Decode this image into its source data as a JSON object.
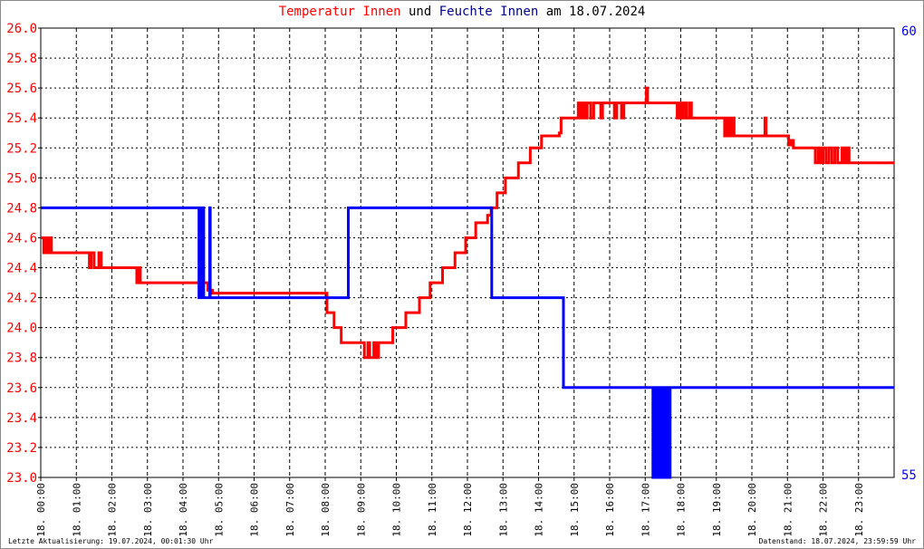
{
  "title": {
    "part1": "Temperatur Innen",
    "part2": "und",
    "part3": "Feuchte Innen",
    "part4": "am 18.07.2024"
  },
  "footer": {
    "left": "Letzte Aktualisierung: 19.07.2024, 00:01:30 Uhr",
    "right": "Datenstand: 18.07.2024, 23:59:59 Uhr"
  },
  "chart_data": {
    "type": "line",
    "title": "Temperatur Innen und Feuchte Innen am 18.07.2024",
    "grid": true,
    "x_range": [
      "00:00",
      "24:00"
    ],
    "x_ticks": [
      "18. 00:00",
      "18. 01:00",
      "18. 02:00",
      "18. 03:00",
      "18. 04:00",
      "18. 05:00",
      "18. 06:00",
      "18. 07:00",
      "18. 08:00",
      "18. 09:00",
      "18. 10:00",
      "18. 11:00",
      "18. 12:00",
      "18. 13:00",
      "18. 14:00",
      "18. 15:00",
      "18. 16:00",
      "18. 17:00",
      "18. 18:00",
      "18. 19:00",
      "18. 20:00",
      "18. 21:00",
      "18. 22:00",
      "18. 23:00"
    ],
    "y_left": {
      "range": [
        23.0,
        26.0
      ],
      "ticks": [
        "23.0",
        "23.2",
        "23.4",
        "23.6",
        "23.8",
        "24.0",
        "24.2",
        "24.4",
        "24.6",
        "24.8",
        "25.0",
        "25.2",
        "25.4",
        "25.6",
        "25.8",
        "26.0"
      ],
      "color": "#ff0000"
    },
    "y_right": {
      "range": [
        55,
        60
      ],
      "ticks": [
        "55",
        "60"
      ],
      "color": "#0000ff"
    },
    "series": [
      {
        "name": "Temperatur Innen",
        "axis": "left",
        "color": "#ff0000",
        "points": [
          [
            "00:00",
            24.6
          ],
          [
            "00:05",
            24.5
          ],
          [
            "00:08",
            24.6
          ],
          [
            "00:12",
            24.5
          ],
          [
            "00:15",
            24.6
          ],
          [
            "00:18",
            24.5
          ],
          [
            "01:20",
            24.5
          ],
          [
            "01:22",
            24.4
          ],
          [
            "01:25",
            24.5
          ],
          [
            "01:30",
            24.4
          ],
          [
            "01:38",
            24.5
          ],
          [
            "01:42",
            24.4
          ],
          [
            "02:40",
            24.4
          ],
          [
            "02:42",
            24.3
          ],
          [
            "02:45",
            24.4
          ],
          [
            "02:48",
            24.3
          ],
          [
            "04:40",
            24.3
          ],
          [
            "04:42",
            24.25
          ],
          [
            "04:50",
            24.23
          ],
          [
            "08:00",
            24.23
          ],
          [
            "08:03",
            24.1
          ],
          [
            "08:15",
            24.0
          ],
          [
            "08:27",
            23.9
          ],
          [
            "09:05",
            23.9
          ],
          [
            "09:06",
            23.8
          ],
          [
            "09:12",
            23.9
          ],
          [
            "09:15",
            23.8
          ],
          [
            "09:22",
            23.9
          ],
          [
            "09:26",
            23.8
          ],
          [
            "09:30",
            23.9
          ],
          [
            "09:54",
            24.0
          ],
          [
            "10:16",
            24.1
          ],
          [
            "10:39",
            24.2
          ],
          [
            "10:57",
            24.3
          ],
          [
            "11:18",
            24.4
          ],
          [
            "11:39",
            24.5
          ],
          [
            "11:57",
            24.6
          ],
          [
            "12:14",
            24.7
          ],
          [
            "12:34",
            24.75
          ],
          [
            "12:40",
            24.8
          ],
          [
            "12:50",
            24.9
          ],
          [
            "13:04",
            25.0
          ],
          [
            "13:26",
            25.1
          ],
          [
            "13:46",
            25.2
          ],
          [
            "14:05",
            25.28
          ],
          [
            "14:35",
            25.3
          ],
          [
            "14:38",
            25.4
          ],
          [
            "15:05",
            25.4
          ],
          [
            "15:07",
            25.5
          ],
          [
            "15:10",
            25.4
          ],
          [
            "15:14",
            25.5
          ],
          [
            "15:18",
            25.4
          ],
          [
            "15:22",
            25.5
          ],
          [
            "15:28",
            25.4
          ],
          [
            "15:33",
            25.5
          ],
          [
            "15:40",
            25.5
          ],
          [
            "15:45",
            25.4
          ],
          [
            "15:48",
            25.5
          ],
          [
            "16:05",
            25.5
          ],
          [
            "16:08",
            25.4
          ],
          [
            "16:12",
            25.5
          ],
          [
            "16:20",
            25.4
          ],
          [
            "16:24",
            25.5
          ],
          [
            "17:00",
            25.5
          ],
          [
            "17:02",
            25.6
          ],
          [
            "17:04",
            25.5
          ],
          [
            "17:52",
            25.5
          ],
          [
            "17:54",
            25.4
          ],
          [
            "17:58",
            25.5
          ],
          [
            "18:02",
            25.4
          ],
          [
            "18:06",
            25.5
          ],
          [
            "18:10",
            25.4
          ],
          [
            "18:15",
            25.5
          ],
          [
            "18:18",
            25.4
          ],
          [
            "19:12",
            25.4
          ],
          [
            "19:14",
            25.28
          ],
          [
            "19:18",
            25.4
          ],
          [
            "19:22",
            25.28
          ],
          [
            "19:26",
            25.4
          ],
          [
            "19:30",
            25.28
          ],
          [
            "20:20",
            25.28
          ],
          [
            "20:22",
            25.4
          ],
          [
            "20:24",
            25.28
          ],
          [
            "21:00",
            25.28
          ],
          [
            "21:02",
            25.22
          ],
          [
            "21:06",
            25.25
          ],
          [
            "21:10",
            25.2
          ],
          [
            "21:45",
            25.2
          ],
          [
            "21:47",
            25.1
          ],
          [
            "21:52",
            25.2
          ],
          [
            "21:56",
            25.1
          ],
          [
            "22:00",
            25.2
          ],
          [
            "22:05",
            25.1
          ],
          [
            "22:10",
            25.2
          ],
          [
            "22:15",
            25.1
          ],
          [
            "22:20",
            25.2
          ],
          [
            "22:25",
            25.1
          ],
          [
            "22:32",
            25.2
          ],
          [
            "22:36",
            25.1
          ],
          [
            "22:40",
            25.2
          ],
          [
            "22:44",
            25.1
          ],
          [
            "24:00",
            25.1
          ]
        ]
      },
      {
        "name": "Feuchte Innen",
        "axis": "right",
        "color": "#0000ff",
        "points": [
          [
            "00:00",
            58
          ],
          [
            "04:26",
            58
          ],
          [
            "04:27",
            57
          ],
          [
            "04:28",
            58
          ],
          [
            "04:29",
            57
          ],
          [
            "04:30",
            58
          ],
          [
            "04:31",
            57
          ],
          [
            "04:32",
            58
          ],
          [
            "04:33",
            57
          ],
          [
            "04:34",
            58
          ],
          [
            "04:35",
            57
          ],
          [
            "04:44",
            57
          ],
          [
            "04:45",
            58
          ],
          [
            "04:46",
            57
          ],
          [
            "08:38",
            57
          ],
          [
            "08:39",
            58
          ],
          [
            "12:40",
            58
          ],
          [
            "12:41",
            57
          ],
          [
            "14:38",
            57
          ],
          [
            "14:42",
            56
          ],
          [
            "17:12",
            56
          ],
          [
            "17:13",
            55
          ],
          [
            "17:15",
            56
          ],
          [
            "17:17",
            55
          ],
          [
            "17:19",
            56
          ],
          [
            "17:22",
            55
          ],
          [
            "17:24",
            56
          ],
          [
            "17:26",
            55
          ],
          [
            "17:29",
            56
          ],
          [
            "17:31",
            55
          ],
          [
            "17:34",
            56
          ],
          [
            "17:36",
            55
          ],
          [
            "17:38",
            56
          ],
          [
            "17:40",
            55
          ],
          [
            "17:42",
            56
          ],
          [
            "24:00",
            56
          ]
        ]
      }
    ]
  }
}
